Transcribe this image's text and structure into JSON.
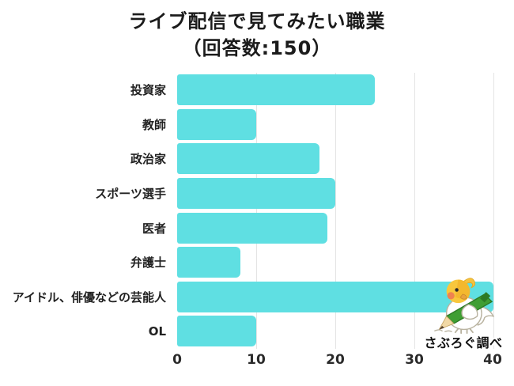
{
  "title": {
    "line1": "ライブ配信で見てみたい職業",
    "line2": "（回答数:150）"
  },
  "chart_data": {
    "type": "bar",
    "orientation": "horizontal",
    "title": "ライブ配信で見てみたい職業（回答数:150）",
    "total_responses": 150,
    "categories": [
      "投資家",
      "教師",
      "政治家",
      "スポーツ選手",
      "医者",
      "弁護士",
      "アイドル、俳優などの芸能人",
      "OL"
    ],
    "values": [
      25,
      10,
      18,
      20,
      19,
      8,
      40,
      10
    ],
    "xlabel": "",
    "ylabel": "",
    "xlim": [
      0,
      40
    ],
    "xticks": [
      "0",
      "10",
      "20",
      "30",
      "40"
    ],
    "grid": true,
    "legend": false,
    "bar_color": "#5fdfe2",
    "gridline_color": "#e4e4e4"
  },
  "annotation": {
    "credit": "さぶろぐ調べ",
    "mascot": "bird-with-pencil-mascot"
  }
}
